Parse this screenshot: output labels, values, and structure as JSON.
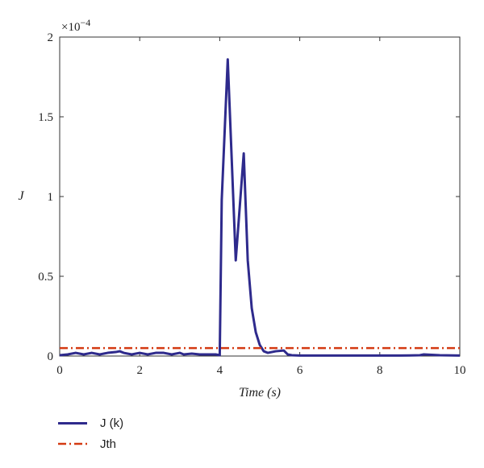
{
  "chart_data": {
    "type": "line",
    "title": "",
    "xlabel": "Time (s)",
    "ylabel": "J",
    "xlim": [
      0,
      10
    ],
    "ylim": [
      0,
      0.0002
    ],
    "exponent_label": "×10",
    "exponent_power": "−4",
    "xticks": [
      0,
      2,
      4,
      6,
      8,
      10
    ],
    "xtick_labels": [
      "0",
      "2",
      "4",
      "6",
      "8",
      "10"
    ],
    "yticks": [
      0,
      5e-05,
      0.0001,
      0.00015,
      0.0002
    ],
    "ytick_labels": [
      "0",
      "0.5",
      "1",
      "1.5",
      "2"
    ],
    "grid": false,
    "legend_position": "below",
    "series": [
      {
        "name": "J (k)",
        "color": "#2e2a8c",
        "style": "solid",
        "x": [
          0,
          0.2,
          0.4,
          0.6,
          0.8,
          1.0,
          1.2,
          1.4,
          1.5,
          1.6,
          1.8,
          2.0,
          2.2,
          2.4,
          2.6,
          2.8,
          3.0,
          3.1,
          3.3,
          3.5,
          3.7,
          3.9,
          4.0,
          4.05,
          4.2,
          4.4,
          4.6,
          4.7,
          4.8,
          4.9,
          5.0,
          5.1,
          5.2,
          5.4,
          5.6,
          5.7,
          5.8,
          6.0,
          6.5,
          7.0,
          7.5,
          8.0,
          8.5,
          9.0,
          9.1,
          9.5,
          10.0
        ],
        "y": [
          5e-07,
          1e-06,
          2e-06,
          1e-06,
          2e-06,
          1e-06,
          2e-06,
          2.5e-06,
          3e-06,
          2e-06,
          1e-06,
          2e-06,
          1e-06,
          2e-06,
          2e-06,
          1e-06,
          2e-06,
          1e-06,
          1.5e-06,
          1e-06,
          1e-06,
          1e-06,
          5e-07,
          9.8e-05,
          0.000186,
          6e-05,
          0.000127,
          6e-05,
          3e-05,
          1.5e-05,
          7e-06,
          3e-06,
          2e-06,
          3e-06,
          3.5e-06,
          1e-06,
          5e-07,
          3e-07,
          3e-07,
          3e-07,
          3e-07,
          3e-07,
          3e-07,
          5e-07,
          1e-06,
          5e-07,
          3e-07
        ]
      },
      {
        "name": "Jth",
        "color": "#d43a12",
        "style": "dashdot",
        "x": [
          0,
          10
        ],
        "y": [
          5e-06,
          5e-06
        ]
      }
    ]
  }
}
